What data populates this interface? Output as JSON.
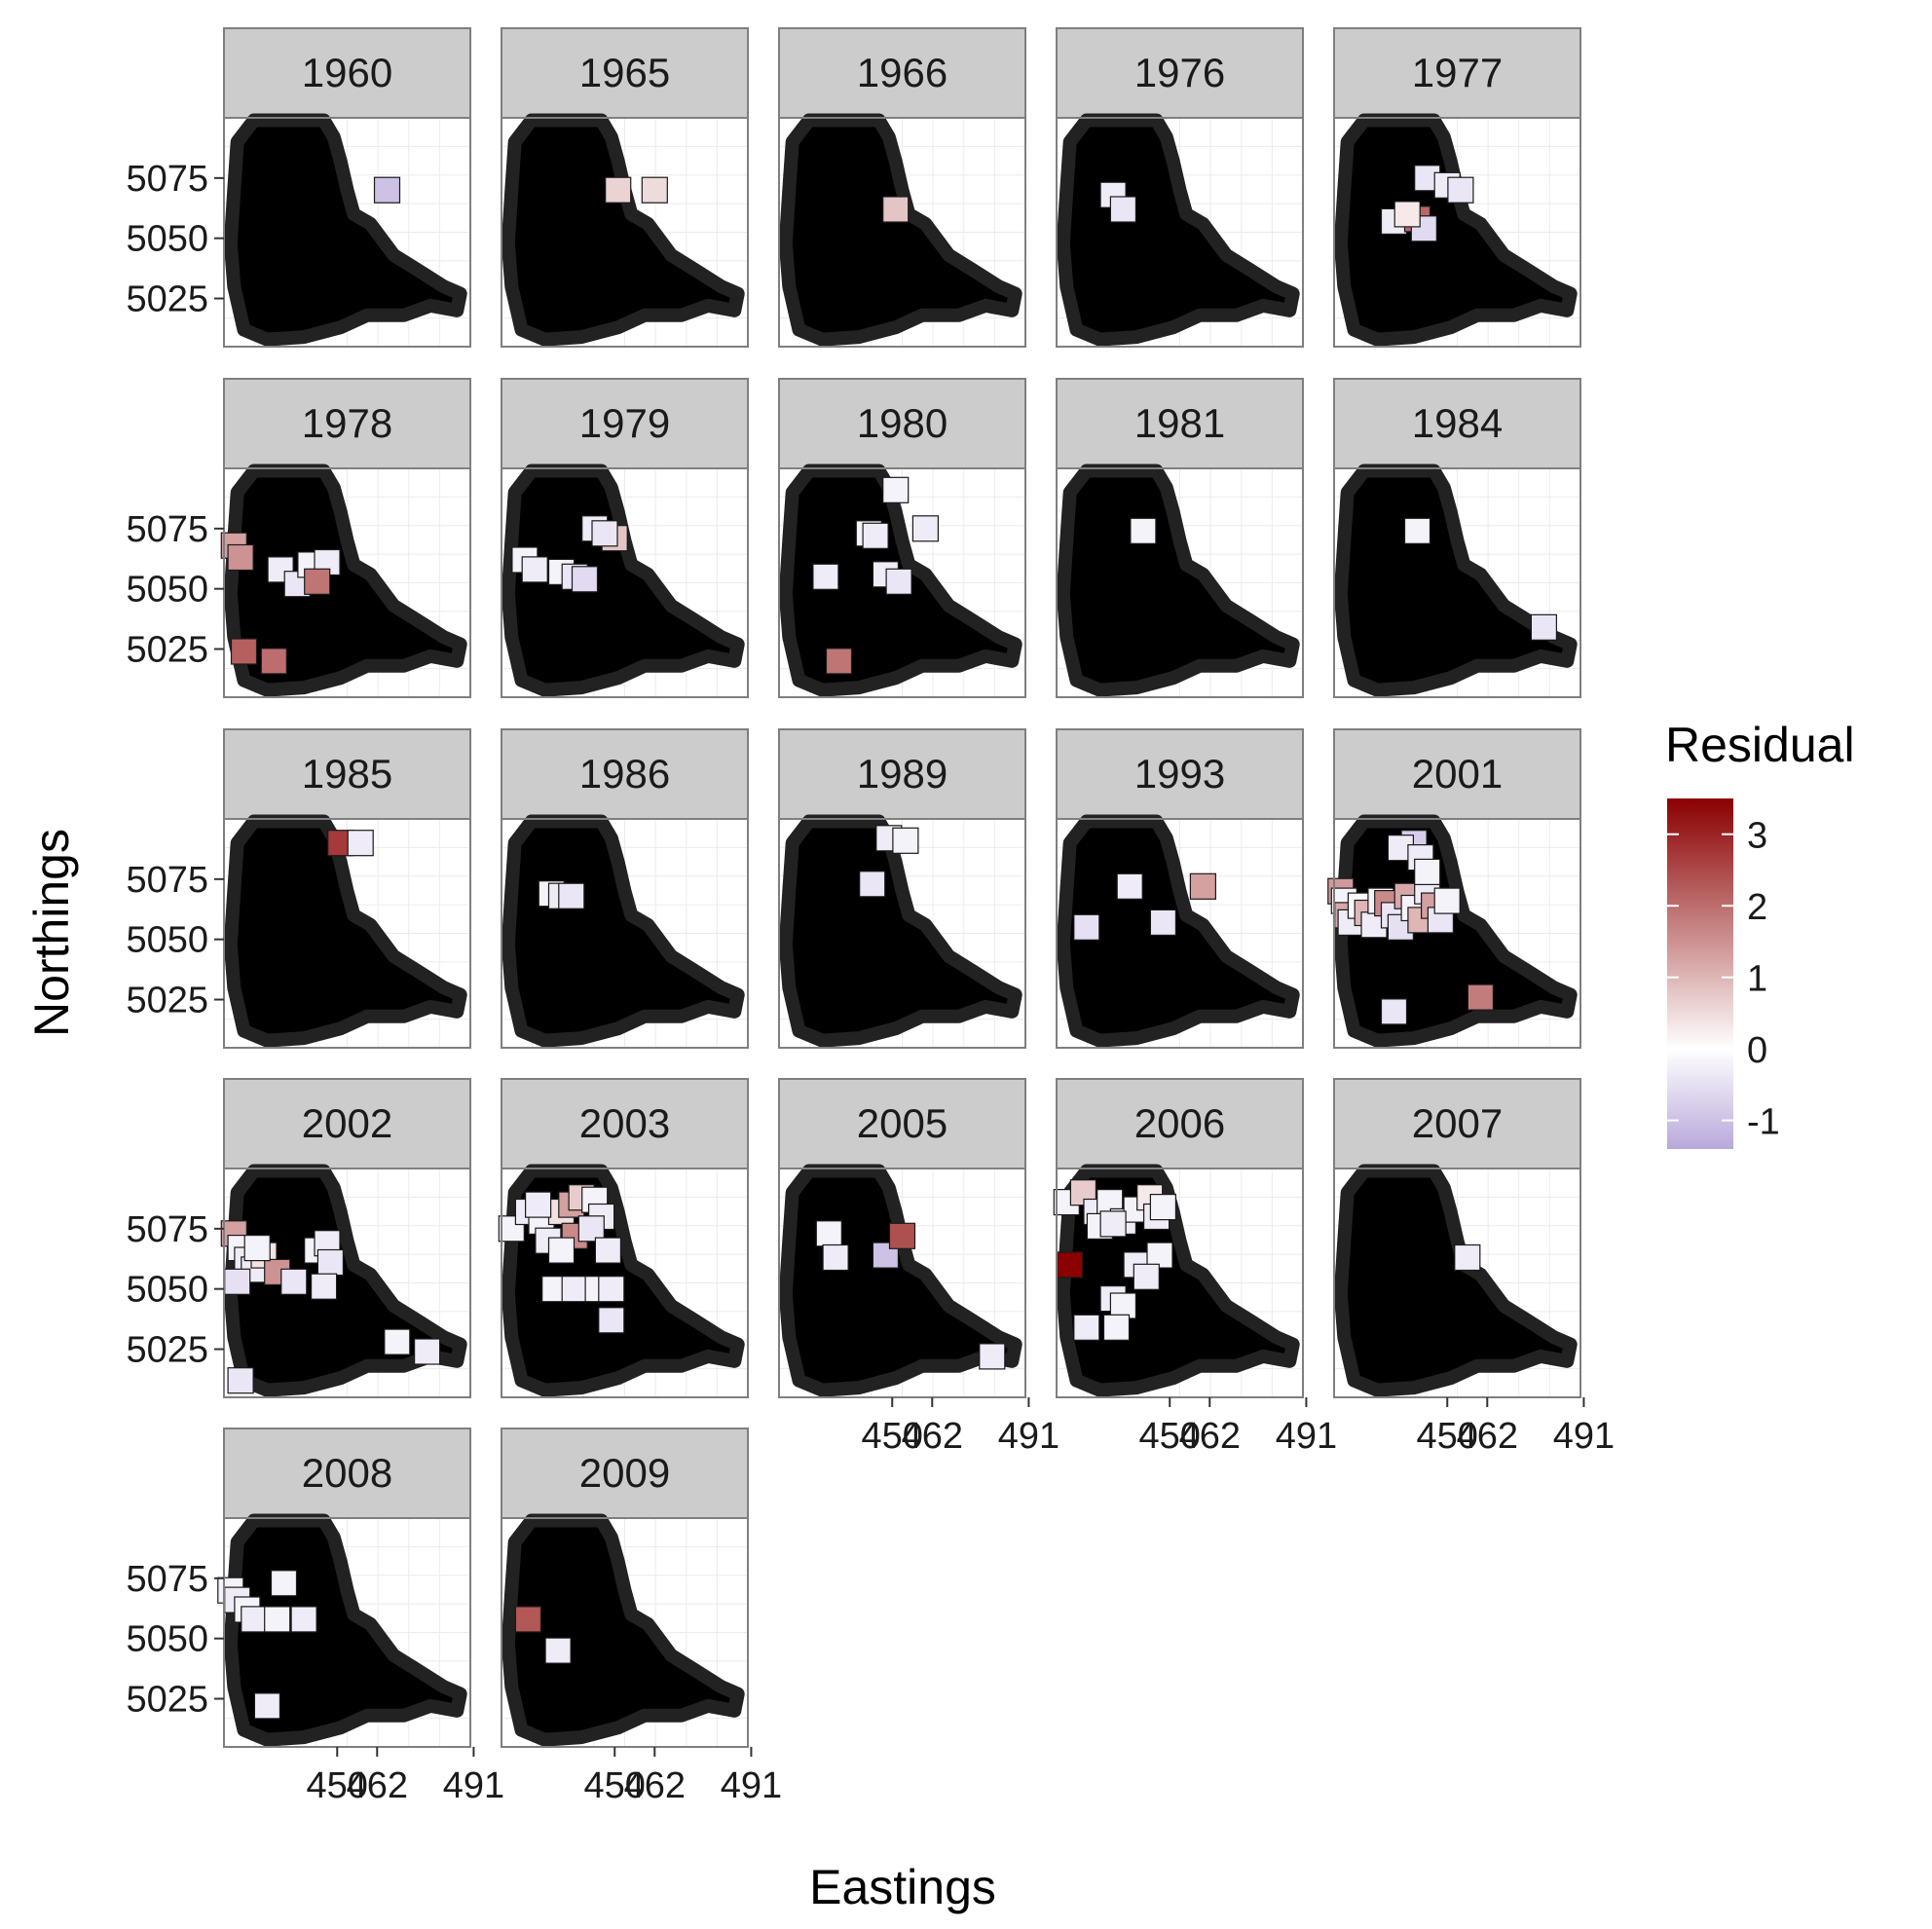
{
  "chart_data": {
    "type": "scatter",
    "facet_by": "year",
    "xlabel": "Eastings",
    "ylabel": "Northings",
    "x_ticks": [
      "450",
      "462",
      "491"
    ],
    "x_tick_values": [
      450,
      462,
      491
    ],
    "y_ticks": [
      "5025",
      "5050",
      "5075"
    ],
    "y_tick_values": [
      5025,
      5050,
      5075
    ],
    "xlim": [
      443,
      495
    ],
    "ylim": [
      5005,
      5100
    ],
    "grid": true,
    "background_points_color": "#000000",
    "legend": {
      "title": "Residual",
      "position": "right",
      "type": "gradient",
      "min": -1.4,
      "max": 3.5,
      "ticks": [
        "3",
        "2",
        "1",
        "0",
        "-1"
      ],
      "tick_values": [
        3,
        2,
        1,
        0,
        -1
      ],
      "low_color": "#b9a8db",
      "mid_color": "#ffffff",
      "high_color": "#8b0000"
    },
    "facets": [
      {
        "year": "1960",
        "points": [
          [
            465,
            5070,
            -1.0
          ]
        ]
      },
      {
        "year": "1965",
        "points": [
          [
            451,
            5070,
            0.6
          ],
          [
            462,
            5070,
            0.5
          ]
        ]
      },
      {
        "year": "1966",
        "points": [
          [
            451,
            5062,
            0.8
          ]
        ]
      },
      {
        "year": "1976",
        "points": [
          [
            433,
            5068,
            -0.3
          ],
          [
            436,
            5062,
            -0.4
          ]
        ]
      },
      {
        "year": "1977",
        "points": [
          [
            434,
            5057,
            -0.3
          ],
          [
            441,
            5058,
            2.1
          ],
          [
            443,
            5054,
            -0.6
          ],
          [
            444,
            5075,
            -0.4
          ],
          [
            450,
            5072,
            -0.3
          ],
          [
            454,
            5070,
            -0.4
          ],
          [
            438,
            5060,
            0.3
          ]
        ]
      },
      {
        "year": "1978",
        "points": [
          [
            419,
            5068,
            1.3
          ],
          [
            421,
            5063,
            1.5
          ],
          [
            433,
            5058,
            -0.3
          ],
          [
            438,
            5052,
            -0.4
          ],
          [
            442,
            5060,
            -0.2
          ],
          [
            447,
            5061,
            -0.3
          ],
          [
            444,
            5053,
            1.9
          ],
          [
            422,
            5024,
            2.2
          ],
          [
            431,
            5020,
            2.0
          ]
        ]
      },
      {
        "year": "1979",
        "points": [
          [
            423,
            5062,
            -0.2
          ],
          [
            426,
            5058,
            -0.3
          ],
          [
            434,
            5057,
            -0.2
          ],
          [
            438,
            5055,
            -0.4
          ],
          [
            441,
            5054,
            -0.6
          ],
          [
            444,
            5075,
            -0.3
          ],
          [
            450,
            5071,
            0.8
          ],
          [
            447,
            5073,
            -0.4
          ]
        ]
      },
      {
        "year": "1980",
        "points": [
          [
            430,
            5055,
            -0.3
          ],
          [
            443,
            5073,
            -0.2
          ],
          [
            445,
            5072,
            -0.3
          ],
          [
            451,
            5091,
            -0.2
          ],
          [
            448,
            5056,
            -0.3
          ],
          [
            452,
            5053,
            -0.4
          ],
          [
            460,
            5075,
            -0.3
          ],
          [
            434,
            5020,
            1.9
          ]
        ]
      },
      {
        "year": "1981",
        "points": [
          [
            442,
            5074,
            -0.2
          ]
        ]
      },
      {
        "year": "1984",
        "points": [
          [
            441,
            5074,
            -0.2
          ],
          [
            479,
            5034,
            -0.4
          ]
        ]
      },
      {
        "year": "1985",
        "points": [
          [
            451,
            5090,
            2.7
          ],
          [
            457,
            5090,
            -0.3
          ]
        ]
      },
      {
        "year": "1986",
        "points": [
          [
            431,
            5069,
            -0.2
          ],
          [
            434,
            5068,
            -0.3
          ],
          [
            437,
            5068,
            -0.4
          ]
        ]
      },
      {
        "year": "1989",
        "points": [
          [
            449,
            5092,
            -0.3
          ],
          [
            454,
            5091,
            -0.2
          ],
          [
            444,
            5073,
            -0.4
          ]
        ]
      },
      {
        "year": "1993",
        "points": [
          [
            425,
            5055,
            -0.5
          ],
          [
            438,
            5072,
            -0.3
          ],
          [
            448,
            5057,
            -0.4
          ],
          [
            460,
            5072,
            1.3
          ]
        ]
      },
      {
        "year": "2001",
        "points": [
          [
            418,
            5070,
            1.4
          ],
          [
            419,
            5066,
            -0.2
          ],
          [
            420,
            5060,
            1.2
          ],
          [
            421,
            5057,
            -0.3
          ],
          [
            424,
            5064,
            -0.1
          ],
          [
            426,
            5061,
            1.0
          ],
          [
            428,
            5056,
            -0.3
          ],
          [
            430,
            5066,
            -0.2
          ],
          [
            432,
            5065,
            1.6
          ],
          [
            434,
            5060,
            -0.4
          ],
          [
            436,
            5055,
            -0.5
          ],
          [
            438,
            5068,
            1.2
          ],
          [
            440,
            5063,
            -0.2
          ],
          [
            442,
            5058,
            1.0
          ],
          [
            444,
            5070,
            -0.3
          ],
          [
            446,
            5064,
            1.3
          ],
          [
            448,
            5058,
            -0.4
          ],
          [
            450,
            5066,
            -0.2
          ],
          [
            440,
            5090,
            -0.8
          ],
          [
            436,
            5088,
            -0.3
          ],
          [
            442,
            5084,
            -0.3
          ],
          [
            444,
            5078,
            -0.2
          ],
          [
            434,
            5020,
            -0.4
          ],
          [
            460,
            5026,
            1.8
          ]
        ]
      },
      {
        "year": "2002",
        "points": [
          [
            419,
            5073,
            1.3
          ],
          [
            421,
            5067,
            -0.2
          ],
          [
            423,
            5062,
            -0.3
          ],
          [
            425,
            5058,
            -0.3
          ],
          [
            420,
            5053,
            -0.5
          ],
          [
            428,
            5064,
            0.4
          ],
          [
            432,
            5057,
            1.5
          ],
          [
            437,
            5053,
            -0.4
          ],
          [
            444,
            5066,
            -0.2
          ],
          [
            447,
            5069,
            -0.3
          ],
          [
            448,
            5061,
            -0.4
          ],
          [
            446,
            5051,
            -0.3
          ],
          [
            468,
            5028,
            -0.2
          ],
          [
            477,
            5024,
            -0.3
          ],
          [
            421,
            5012,
            -0.4
          ],
          [
            426,
            5067,
            -0.2
          ]
        ]
      },
      {
        "year": "2003",
        "points": [
          [
            419,
            5075,
            -0.2
          ],
          [
            424,
            5082,
            -0.3
          ],
          [
            428,
            5078,
            -0.2
          ],
          [
            430,
            5070,
            -0.3
          ],
          [
            434,
            5082,
            0.4
          ],
          [
            437,
            5085,
            1.3
          ],
          [
            440,
            5088,
            0.7
          ],
          [
            444,
            5087,
            -0.2
          ],
          [
            446,
            5080,
            -0.3
          ],
          [
            438,
            5072,
            1.6
          ],
          [
            443,
            5075,
            -0.4
          ],
          [
            434,
            5066,
            -0.2
          ],
          [
            448,
            5066,
            -0.3
          ],
          [
            432,
            5050,
            -0.2
          ],
          [
            438,
            5050,
            -0.3
          ],
          [
            445,
            5050,
            -0.2
          ],
          [
            449,
            5050,
            -0.3
          ],
          [
            449,
            5037,
            -0.4
          ],
          [
            427,
            5085,
            -0.3
          ]
        ]
      },
      {
        "year": "2005",
        "points": [
          [
            431,
            5073,
            -0.2
          ],
          [
            433,
            5063,
            -0.3
          ],
          [
            448,
            5064,
            -1.0
          ],
          [
            453,
            5072,
            2.4
          ],
          [
            480,
            5022,
            -0.3
          ]
        ]
      },
      {
        "year": "2006",
        "points": [
          [
            419,
            5086,
            -0.2
          ],
          [
            424,
            5090,
            0.7
          ],
          [
            428,
            5082,
            -0.3
          ],
          [
            432,
            5086,
            -0.2
          ],
          [
            436,
            5078,
            -0.3
          ],
          [
            440,
            5083,
            -0.2
          ],
          [
            444,
            5088,
            0.3
          ],
          [
            446,
            5080,
            -0.3
          ],
          [
            448,
            5084,
            -0.2
          ],
          [
            429,
            5076,
            -0.2
          ],
          [
            433,
            5077,
            -0.3
          ],
          [
            420,
            5060,
            3.5
          ],
          [
            433,
            5046,
            -0.3
          ],
          [
            436,
            5043,
            -0.2
          ],
          [
            440,
            5060,
            -0.3
          ],
          [
            447,
            5064,
            -0.2
          ],
          [
            425,
            5034,
            -0.3
          ],
          [
            434,
            5034,
            -0.2
          ],
          [
            443,
            5055,
            -0.3
          ]
        ]
      },
      {
        "year": "2007",
        "points": [
          [
            456,
            5063,
            -0.3
          ]
        ]
      },
      {
        "year": "2008",
        "points": [
          [
            418,
            5070,
            -0.2
          ],
          [
            420,
            5066,
            -0.3
          ],
          [
            423,
            5062,
            -0.2
          ],
          [
            425,
            5058,
            -0.3
          ],
          [
            432,
            5058,
            -0.2
          ],
          [
            440,
            5058,
            -0.3
          ],
          [
            434,
            5073,
            -0.2
          ],
          [
            429,
            5022,
            -0.3
          ]
        ]
      },
      {
        "year": "2009",
        "points": [
          [
            424,
            5058,
            2.3
          ],
          [
            433,
            5045,
            -0.3
          ]
        ]
      }
    ]
  }
}
